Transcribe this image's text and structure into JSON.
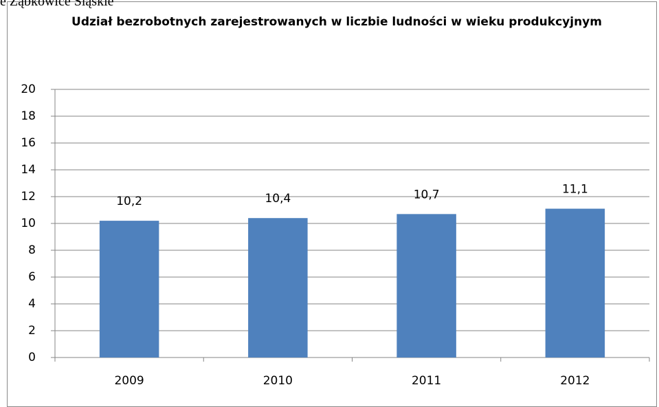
{
  "caption": "e Ząbkowice Śląskie",
  "chart_data": {
    "type": "bar",
    "title": "Udział bezrobotnych zarejestrowanych w liczbie ludności w wieku produkcyjnym",
    "categories": [
      "2009",
      "2010",
      "2011",
      "2012"
    ],
    "values": [
      10.2,
      10.4,
      10.7,
      11.1
    ],
    "value_labels": [
      "10,2",
      "10,4",
      "10,7",
      "11,1"
    ],
    "color": "#4f81bd",
    "ylim": [
      0,
      20
    ],
    "yticks": [
      0,
      2,
      4,
      6,
      8,
      10,
      12,
      14,
      16,
      18,
      20
    ],
    "grid": true
  }
}
